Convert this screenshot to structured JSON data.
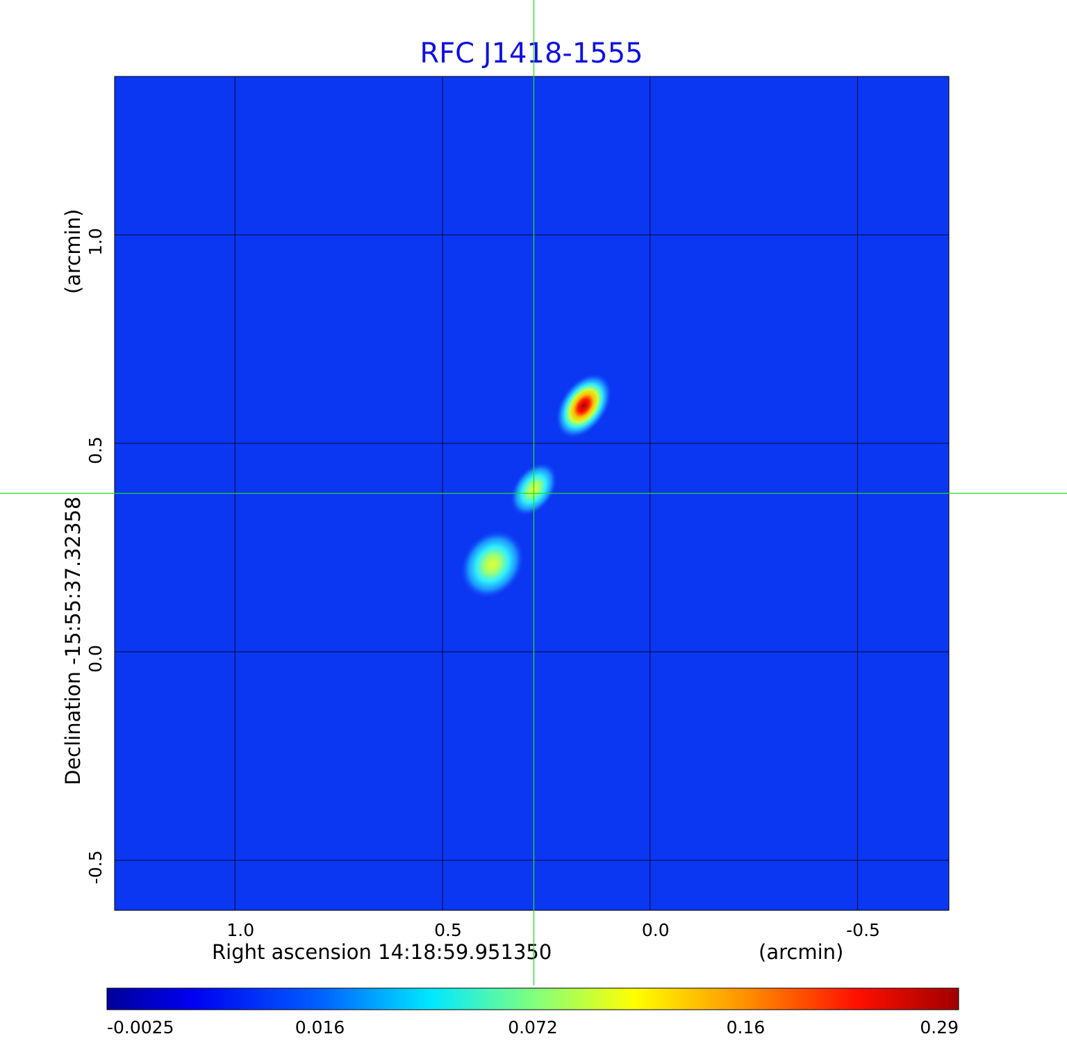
{
  "chart_data": {
    "type": "heatmap",
    "title": "RFC J1418-1555",
    "xlabel": "Right ascension  14:18:59.951350",
    "xunit": "(arcmin)",
    "ylabel": "Declination  -15:55:37.32358",
    "yunit": "(arcmin)",
    "x_range": [
      1.29,
      -0.72
    ],
    "y_range": [
      -0.62,
      1.38
    ],
    "x_ticks": [
      1.0,
      0.5,
      0.0,
      -0.5
    ],
    "x_tick_labels": [
      "1.0",
      "0.5",
      "0.0",
      "-0.5"
    ],
    "y_ticks": [
      1.0,
      0.5,
      0.0,
      -0.5
    ],
    "y_tick_labels": [
      "1.0",
      "0.5",
      "0.0",
      "-0.5"
    ],
    "grid": true,
    "crosshair": {
      "x": 0.28,
      "y": 0.38,
      "color": "#22dd22"
    },
    "colormap": "jet",
    "colorbar": {
      "position": "bottom",
      "tick_labels": [
        "-0.0025",
        "0.016",
        "0.072",
        "0.16",
        "0.29"
      ],
      "tick_fractions": [
        0.0,
        0.25,
        0.5,
        0.75,
        1.0
      ]
    },
    "components": [
      {
        "x": 0.16,
        "y": 0.59,
        "peak": 0.29,
        "sx": 0.035,
        "sy": 0.055
      },
      {
        "x": 0.28,
        "y": 0.39,
        "peak": 0.1,
        "sx": 0.03,
        "sy": 0.045
      },
      {
        "x": 0.38,
        "y": 0.21,
        "peak": 0.11,
        "sx": 0.045,
        "sy": 0.055
      }
    ]
  }
}
